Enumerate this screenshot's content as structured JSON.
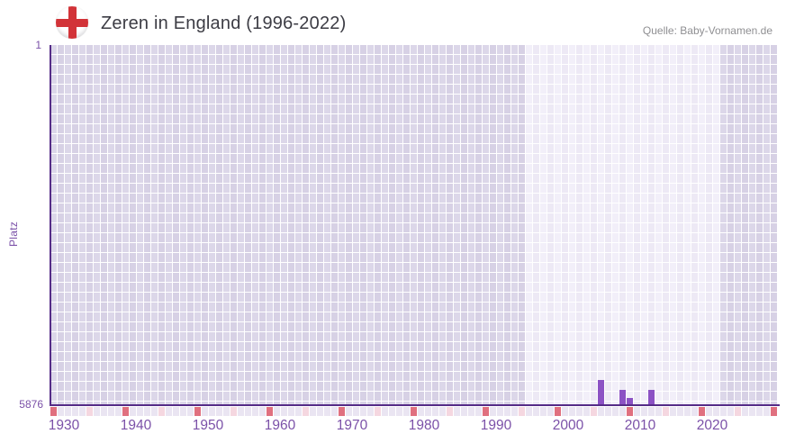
{
  "header": {
    "title": "Zeren in England (1996-2022)",
    "source": "Quelle: Baby-Vornamen.de"
  },
  "chart_data": {
    "type": "bar",
    "title": "Zeren in England (1996-2022)",
    "ylabel": "Platz",
    "y_axis": {
      "min": 1,
      "max": 5876,
      "inverted": true,
      "tick_labels": [
        "1",
        "5876"
      ]
    },
    "x_axis": {
      "start_year": 1930,
      "end_year": 2030,
      "tick_years": [
        1930,
        1940,
        1950,
        1960,
        1970,
        1980,
        1990,
        2000,
        2010,
        2020
      ]
    },
    "data_period": {
      "start": 1996,
      "end": 2022
    },
    "bars": [
      {
        "year": 2006,
        "rank": 5485
      },
      {
        "year": 2009,
        "rank": 5640
      },
      {
        "year": 2010,
        "rank": 5770
      },
      {
        "year": 2013,
        "rank": 5640
      }
    ],
    "grid": true,
    "legend_position": "none",
    "colors": {
      "bar": "#8c52c4",
      "axis": "#552c87",
      "tick_label": "#7b51a8",
      "title_text": "#3c3c44",
      "source_text": "#8f8f92",
      "flag_red": "#d23338",
      "grid_outside_a": "#dcd7e9",
      "grid_outside_b": "#d7d1e5",
      "grid_inside_a": "#f2eff9",
      "grid_inside_b": "#ede9f5",
      "tick_cell_default": "#eae5f2",
      "tick_cell_half_decade": "#f5d7e0",
      "tick_cell_decade": "#e0707f"
    }
  }
}
